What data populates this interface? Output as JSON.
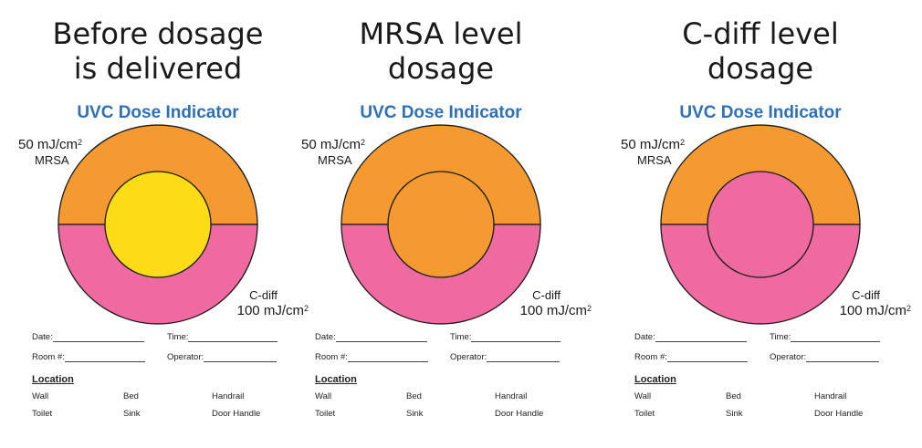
{
  "panels": [
    {
      "heading": [
        "Before dosage",
        "is delivered"
      ],
      "indicator_title": "UVC Dose Indicator",
      "mrsa_dose": "50 mJ/cm",
      "mrsa_sup": "2",
      "mrsa_label": "MRSA",
      "cdiff_label": "C-diff",
      "cdiff_dose": "100 mJ/cm",
      "cdiff_sup": "2",
      "center_color": "#fbdc16",
      "date_label": "Date:",
      "time_label": "Time:",
      "room_label": "Room #:",
      "operator_label": "Operator:",
      "location_title": "Location",
      "locations": [
        "Wall",
        "Bed",
        "Handrail",
        "Toilet",
        "Sink",
        "Door Handle"
      ]
    },
    {
      "heading": [
        "MRSA level",
        "dosage"
      ],
      "indicator_title": "UVC Dose Indicator",
      "mrsa_dose": "50 mJ/cm",
      "mrsa_sup": "2",
      "mrsa_label": "MRSA",
      "cdiff_label": "C-diff",
      "cdiff_dose": "100 mJ/cm",
      "cdiff_sup": "2",
      "center_color": "#f49a30",
      "date_label": "Date:",
      "time_label": "Time:",
      "room_label": "Room #:",
      "operator_label": "Operator:",
      "location_title": "Location",
      "locations": [
        "Wall",
        "Bed",
        "Handrail",
        "Toilet",
        "Sink",
        "Door Handle"
      ]
    },
    {
      "heading": [
        "C-diff level",
        "dosage"
      ],
      "indicator_title": "UVC Dose Indicator",
      "mrsa_dose": "50 mJ/cm",
      "mrsa_sup": "2",
      "mrsa_label": "MRSA",
      "cdiff_label": "C-diff",
      "cdiff_dose": "100 mJ/cm",
      "cdiff_sup": "2",
      "center_color": "#ef6aa0",
      "date_label": "Date:",
      "time_label": "Time:",
      "room_label": "Room #:",
      "operator_label": "Operator:",
      "location_title": "Location",
      "locations": [
        "Wall",
        "Bed",
        "Handrail",
        "Toilet",
        "Sink",
        "Door Handle"
      ]
    }
  ],
  "colors": {
    "mrsa_band": "#f49a30",
    "cdiff_band": "#ef6aa0",
    "title_blue": "#2f6fb6"
  }
}
